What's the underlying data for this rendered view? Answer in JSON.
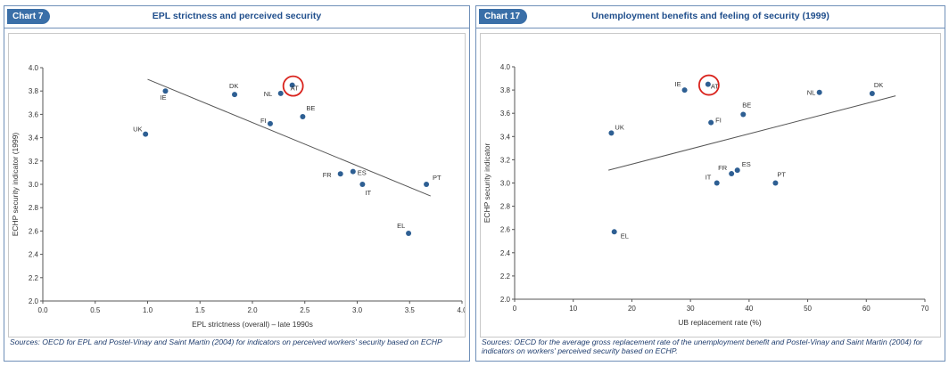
{
  "charts": [
    {
      "tag": "Chart 7",
      "title": "EPL strictness and perceived security",
      "source": "Sources: OECD for EPL and Postel-Vinay and Saint Martin (2004) for indicators on perceived workers' security based on ECHP",
      "chart_data": {
        "type": "scatter",
        "xlabel": "EPL strictness (overall) – late 1990s",
        "ylabel": "ECHP security indicator (1999)",
        "xlim": [
          0,
          4
        ],
        "ylim": [
          2,
          4
        ],
        "xticks": [
          "0.0",
          "0.5",
          "1.0",
          "1.5",
          "2.0",
          "2.5",
          "3.0",
          "3.5",
          "4.0"
        ],
        "yticks": [
          "2.0",
          "2.2",
          "2.4",
          "2.6",
          "2.8",
          "3.0",
          "3.2",
          "3.4",
          "3.6",
          "3.8",
          "4.0"
        ],
        "grid": false,
        "points": [
          {
            "label": "UK",
            "x": 0.98,
            "y": 3.43
          },
          {
            "label": "IE",
            "x": 1.17,
            "y": 3.8
          },
          {
            "label": "DK",
            "x": 1.83,
            "y": 3.77
          },
          {
            "label": "NL",
            "x": 2.27,
            "y": 3.78
          },
          {
            "label": "AT",
            "x": 2.38,
            "y": 3.85
          },
          {
            "label": "FI",
            "x": 2.17,
            "y": 3.52
          },
          {
            "label": "BE",
            "x": 2.48,
            "y": 3.58
          },
          {
            "label": "FR",
            "x": 2.84,
            "y": 3.09
          },
          {
            "label": "ES",
            "x": 2.96,
            "y": 3.11
          },
          {
            "label": "IT",
            "x": 3.05,
            "y": 3.0
          },
          {
            "label": "PT",
            "x": 3.66,
            "y": 3.0
          },
          {
            "label": "EL",
            "x": 3.49,
            "y": 2.58
          }
        ],
        "trendline": {
          "x": [
            1.0,
            3.7
          ],
          "y": [
            3.9,
            2.9
          ]
        },
        "highlight": "AT"
      }
    },
    {
      "tag": "Chart 17",
      "title": "Unemployment benefits and feeling of security (1999)",
      "source": "Sources: OECD for the average gross replacement rate of the unemployment benefit and Postel-Vinay and Saint Martin (2004) for indicators on workers' perceived security based on ECHP.",
      "chart_data": {
        "type": "scatter",
        "xlabel": "UB replacement rate (%)",
        "ylabel": "ECHP security indicator",
        "xlim": [
          0,
          70
        ],
        "ylim": [
          2,
          4
        ],
        "xticks": [
          "0",
          "10",
          "20",
          "30",
          "40",
          "50",
          "60",
          "70"
        ],
        "yticks": [
          "2.0",
          "2.2",
          "2.4",
          "2.6",
          "2.8",
          "3.0",
          "3.2",
          "3.4",
          "3.6",
          "3.8",
          "4.0"
        ],
        "grid": false,
        "points": [
          {
            "label": "UK",
            "x": 16.5,
            "y": 3.43
          },
          {
            "label": "IE",
            "x": 29.0,
            "y": 3.8
          },
          {
            "label": "AT",
            "x": 33.0,
            "y": 3.85
          },
          {
            "label": "FI",
            "x": 33.5,
            "y": 3.52
          },
          {
            "label": "BE",
            "x": 39.0,
            "y": 3.59
          },
          {
            "label": "NL",
            "x": 52.0,
            "y": 3.78
          },
          {
            "label": "DK",
            "x": 61.0,
            "y": 3.77
          },
          {
            "label": "FR",
            "x": 37.0,
            "y": 3.08
          },
          {
            "label": "ES",
            "x": 38.0,
            "y": 3.11
          },
          {
            "label": "IT",
            "x": 34.5,
            "y": 3.0
          },
          {
            "label": "PT",
            "x": 44.5,
            "y": 3.0
          },
          {
            "label": "EL",
            "x": 17.0,
            "y": 2.58
          }
        ],
        "trendline": {
          "x": [
            16,
            65
          ],
          "y": [
            3.11,
            3.75
          ]
        },
        "highlight": "AT"
      }
    }
  ]
}
